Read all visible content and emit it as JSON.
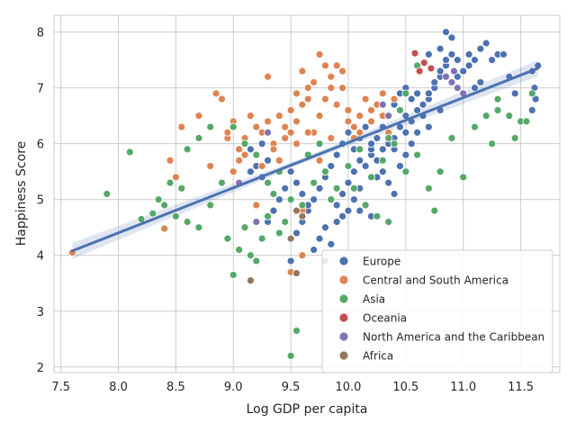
{
  "chart_data": {
    "type": "scatter",
    "title": "",
    "xlabel": "Log GDP per capita",
    "ylabel": "Happiness Score",
    "xlim": [
      7.44,
      11.84
    ],
    "ylim": [
      1.9,
      8.3
    ],
    "x_ticks": [
      "7.5",
      "8.0",
      "8.5",
      "9.0",
      "9.5",
      "10.0",
      "10.5",
      "11.0",
      "11.5"
    ],
    "y_ticks": [
      "2",
      "3",
      "4",
      "5",
      "6",
      "7",
      "8"
    ],
    "grid": true,
    "legend_position": "lower-right",
    "regression": {
      "x": [
        7.6,
        11.65
      ],
      "y": [
        4.08,
        7.35
      ],
      "color": "#4c72b0",
      "band_color": "#4c72b0"
    },
    "series": [
      {
        "name": "Europe",
        "color": "#4c72b0",
        "points": [
          [
            9.9,
            4.9
          ],
          [
            9.95,
            5.1
          ],
          [
            10.0,
            5.3
          ],
          [
            10.05,
            5.5
          ],
          [
            10.1,
            5.2
          ],
          [
            10.15,
            5.6
          ],
          [
            10.2,
            5.8
          ],
          [
            10.25,
            5.4
          ],
          [
            10.3,
            5.9
          ],
          [
            10.35,
            6.0
          ],
          [
            10.4,
            6.1
          ],
          [
            10.45,
            6.3
          ],
          [
            10.5,
            6.2
          ],
          [
            10.55,
            6.4
          ],
          [
            10.6,
            6.6
          ],
          [
            10.65,
            6.5
          ],
          [
            10.7,
            6.8
          ],
          [
            10.75,
            7.0
          ],
          [
            10.8,
            7.2
          ],
          [
            10.85,
            7.4
          ],
          [
            10.9,
            7.6
          ],
          [
            10.95,
            7.5
          ],
          [
            11.0,
            7.3
          ],
          [
            11.05,
            7.6
          ],
          [
            11.1,
            7.5
          ],
          [
            11.15,
            7.7
          ],
          [
            11.2,
            7.8
          ],
          [
            11.3,
            7.6
          ],
          [
            11.4,
            7.2
          ],
          [
            11.6,
            7.3
          ],
          [
            11.62,
            7.0
          ],
          [
            11.65,
            7.4
          ],
          [
            11.63,
            6.8
          ],
          [
            11.6,
            6.6
          ],
          [
            10.85,
            8.0
          ],
          [
            10.9,
            7.9
          ],
          [
            10.8,
            7.7
          ],
          [
            10.7,
            7.6
          ],
          [
            10.6,
            7.4
          ],
          [
            10.5,
            7.0
          ],
          [
            10.45,
            6.9
          ],
          [
            10.4,
            6.7
          ],
          [
            10.35,
            6.5
          ],
          [
            10.3,
            6.3
          ],
          [
            10.25,
            6.1
          ],
          [
            10.2,
            5.9
          ],
          [
            10.1,
            5.7
          ],
          [
            10.05,
            5.0
          ],
          [
            10.0,
            4.8
          ],
          [
            9.95,
            4.7
          ],
          [
            9.9,
            4.6
          ],
          [
            9.8,
            4.5
          ],
          [
            9.75,
            4.3
          ],
          [
            9.7,
            4.1
          ],
          [
            9.6,
            4.0
          ],
          [
            9.5,
            3.9
          ],
          [
            9.55,
            4.4
          ],
          [
            9.6,
            4.6
          ],
          [
            9.65,
            4.8
          ],
          [
            9.7,
            5.0
          ],
          [
            9.75,
            5.2
          ],
          [
            9.8,
            5.4
          ],
          [
            9.85,
            5.6
          ],
          [
            9.9,
            5.8
          ],
          [
            9.95,
            6.0
          ],
          [
            10.0,
            6.2
          ],
          [
            10.05,
            5.9
          ],
          [
            10.1,
            6.1
          ],
          [
            10.15,
            6.3
          ],
          [
            10.2,
            6.0
          ],
          [
            10.25,
            5.7
          ],
          [
            10.3,
            5.5
          ],
          [
            10.35,
            5.3
          ],
          [
            10.4,
            5.1
          ],
          [
            10.45,
            5.6
          ],
          [
            10.5,
            5.8
          ],
          [
            10.55,
            6.0
          ],
          [
            10.6,
            6.2
          ],
          [
            10.65,
            6.7
          ],
          [
            10.7,
            6.9
          ],
          [
            10.75,
            7.1
          ],
          [
            10.8,
            7.3
          ],
          [
            10.85,
            7.5
          ],
          [
            10.95,
            7.2
          ],
          [
            11.05,
            7.4
          ],
          [
            11.1,
            7.0
          ],
          [
            11.15,
            7.1
          ],
          [
            11.25,
            7.5
          ],
          [
            11.35,
            7.6
          ],
          [
            11.45,
            6.9
          ],
          [
            9.45,
            5.2
          ],
          [
            9.4,
            5.0
          ],
          [
            9.35,
            4.8
          ],
          [
            9.3,
            4.6
          ],
          [
            9.25,
            5.4
          ],
          [
            9.2,
            5.6
          ],
          [
            9.15,
            5.9
          ],
          [
            9.3,
            5.7
          ],
          [
            9.5,
            5.5
          ],
          [
            9.55,
            5.3
          ],
          [
            9.6,
            5.1
          ],
          [
            9.65,
            4.9
          ],
          [
            9.8,
            3.9
          ],
          [
            9.85,
            4.2
          ],
          [
            10.2,
            4.7
          ],
          [
            10.15,
            4.9
          ],
          [
            10.1,
            4.8
          ],
          [
            9.15,
            5.5
          ],
          [
            9.25,
            6.0
          ],
          [
            10.4,
            5.9
          ],
          [
            10.5,
            6.5
          ],
          [
            10.55,
            6.8
          ],
          [
            10.6,
            6.9
          ],
          [
            10.7,
            6.3
          ],
          [
            10.8,
            6.6
          ]
        ]
      },
      {
        "name": "Central and South America",
        "color": "#dd8452",
        "points": [
          [
            7.6,
            4.05
          ],
          [
            8.4,
            4.48
          ],
          [
            8.45,
            5.7
          ],
          [
            8.5,
            5.4
          ],
          [
            8.55,
            6.3
          ],
          [
            8.6,
            5.9
          ],
          [
            8.7,
            6.5
          ],
          [
            8.8,
            5.6
          ],
          [
            8.85,
            6.9
          ],
          [
            8.9,
            6.8
          ],
          [
            8.95,
            6.1
          ],
          [
            9.0,
            6.4
          ],
          [
            9.05,
            5.9
          ],
          [
            9.1,
            6.0
          ],
          [
            9.15,
            6.5
          ],
          [
            9.2,
            5.8
          ],
          [
            9.25,
            6.2
          ],
          [
            9.3,
            7.2
          ],
          [
            9.35,
            6.0
          ],
          [
            9.4,
            5.7
          ],
          [
            9.45,
            6.3
          ],
          [
            9.5,
            6.6
          ],
          [
            9.55,
            6.9
          ],
          [
            9.6,
            7.3
          ],
          [
            9.65,
            6.8
          ],
          [
            9.7,
            7.1
          ],
          [
            9.75,
            7.6
          ],
          [
            9.8,
            7.4
          ],
          [
            9.85,
            7.0
          ],
          [
            9.9,
            6.7
          ],
          [
            9.95,
            7.3
          ],
          [
            10.0,
            6.6
          ],
          [
            10.05,
            6.3
          ],
          [
            10.1,
            6.5
          ],
          [
            10.15,
            6.8
          ],
          [
            10.2,
            6.4
          ],
          [
            10.25,
            6.7
          ],
          [
            10.3,
            6.9
          ],
          [
            10.35,
            6.2
          ],
          [
            9.0,
            5.5
          ],
          [
            9.05,
            5.7
          ],
          [
            9.1,
            6.1
          ],
          [
            9.2,
            6.3
          ],
          [
            9.3,
            6.4
          ],
          [
            9.4,
            6.5
          ],
          [
            9.5,
            6.2
          ],
          [
            9.55,
            6.4
          ],
          [
            9.6,
            6.7
          ],
          [
            9.65,
            7.0
          ],
          [
            9.7,
            6.2
          ],
          [
            9.75,
            6.5
          ],
          [
            9.8,
            6.8
          ],
          [
            9.85,
            7.2
          ],
          [
            9.9,
            7.4
          ],
          [
            9.95,
            7.0
          ],
          [
            10.0,
            6.4
          ],
          [
            10.05,
            6.1
          ],
          [
            10.1,
            6.2
          ],
          [
            8.95,
            6.2
          ],
          [
            9.1,
            5.8
          ],
          [
            9.25,
            5.6
          ],
          [
            9.35,
            5.9
          ],
          [
            9.45,
            6.1
          ],
          [
            9.55,
            6.0
          ],
          [
            9.65,
            6.2
          ],
          [
            9.75,
            5.7
          ],
          [
            9.85,
            6.1
          ],
          [
            10.2,
            6.6
          ],
          [
            10.3,
            6.5
          ],
          [
            10.4,
            6.8
          ],
          [
            9.5,
            3.7
          ],
          [
            9.6,
            4.0
          ],
          [
            9.6,
            4.8
          ],
          [
            9.2,
            4.9
          ]
        ]
      },
      {
        "name": "Asia",
        "color": "#55a868",
        "points": [
          [
            7.9,
            5.1
          ],
          [
            8.1,
            5.85
          ],
          [
            8.2,
            4.65
          ],
          [
            8.3,
            4.75
          ],
          [
            8.35,
            5.0
          ],
          [
            8.4,
            4.9
          ],
          [
            8.45,
            5.3
          ],
          [
            8.5,
            4.7
          ],
          [
            8.55,
            5.2
          ],
          [
            8.6,
            4.6
          ],
          [
            8.7,
            4.5
          ],
          [
            8.8,
            4.9
          ],
          [
            8.9,
            5.3
          ],
          [
            8.95,
            4.3
          ],
          [
            9.0,
            3.65
          ],
          [
            9.05,
            4.1
          ],
          [
            9.1,
            4.5
          ],
          [
            9.15,
            4.0
          ],
          [
            9.2,
            3.9
          ],
          [
            9.25,
            4.3
          ],
          [
            9.3,
            4.7
          ],
          [
            9.35,
            5.1
          ],
          [
            9.4,
            5.5
          ],
          [
            9.45,
            4.6
          ],
          [
            9.5,
            2.2
          ],
          [
            9.55,
            2.65
          ],
          [
            9.6,
            4.9
          ],
          [
            9.7,
            5.3
          ],
          [
            9.8,
            5.5
          ],
          [
            9.9,
            5.2
          ],
          [
            10.0,
            5.6
          ],
          [
            10.1,
            5.9
          ],
          [
            10.2,
            5.4
          ],
          [
            10.3,
            5.7
          ],
          [
            10.4,
            6.0
          ],
          [
            10.5,
            5.5
          ],
          [
            10.6,
            5.8
          ],
          [
            10.7,
            5.2
          ],
          [
            10.75,
            4.8
          ],
          [
            10.8,
            5.5
          ],
          [
            10.9,
            6.1
          ],
          [
            11.0,
            5.4
          ],
          [
            11.1,
            6.3
          ],
          [
            11.2,
            6.5
          ],
          [
            11.3,
            6.6
          ],
          [
            11.4,
            6.5
          ],
          [
            11.45,
            6.1
          ],
          [
            11.5,
            6.4
          ],
          [
            11.55,
            6.4
          ],
          [
            11.6,
            6.9
          ],
          [
            9.0,
            6.3
          ],
          [
            9.1,
            6.0
          ],
          [
            9.2,
            5.8
          ],
          [
            9.3,
            5.3
          ],
          [
            8.6,
            5.9
          ],
          [
            8.7,
            6.1
          ],
          [
            8.8,
            6.3
          ],
          [
            9.4,
            4.4
          ],
          [
            9.5,
            5.0
          ],
          [
            10.35,
            6.1
          ],
          [
            10.45,
            6.6
          ],
          [
            10.5,
            6.9
          ],
          [
            10.6,
            7.4
          ],
          [
            11.25,
            6.0
          ],
          [
            11.3,
            6.8
          ],
          [
            9.65,
            5.8
          ],
          [
            9.75,
            6.0
          ],
          [
            9.85,
            5.0
          ],
          [
            10.05,
            5.2
          ],
          [
            10.15,
            4.9
          ],
          [
            10.25,
            4.7
          ],
          [
            10.35,
            4.6
          ]
        ]
      },
      {
        "name": "Oceania",
        "color": "#c44e52",
        "points": [
          [
            10.58,
            7.62
          ],
          [
            10.62,
            7.3
          ],
          [
            10.66,
            7.45
          ],
          [
            10.72,
            7.35
          ]
        ]
      },
      {
        "name": "North America and the Caribbean",
        "color": "#8172b3",
        "points": [
          [
            9.2,
            4.6
          ],
          [
            9.3,
            6.2
          ],
          [
            10.3,
            6.7
          ],
          [
            10.35,
            6.5
          ],
          [
            10.85,
            7.2
          ],
          [
            10.9,
            7.1
          ],
          [
            10.95,
            7.0
          ],
          [
            11.0,
            6.9
          ],
          [
            10.92,
            7.3
          ],
          [
            9.05,
            5.3
          ]
        ]
      },
      {
        "name": "Africa",
        "color": "#937860",
        "points": [
          [
            9.55,
            3.68
          ],
          [
            9.15,
            3.55
          ],
          [
            9.5,
            4.3
          ],
          [
            9.55,
            4.8
          ],
          [
            9.6,
            4.7
          ]
        ]
      }
    ]
  }
}
